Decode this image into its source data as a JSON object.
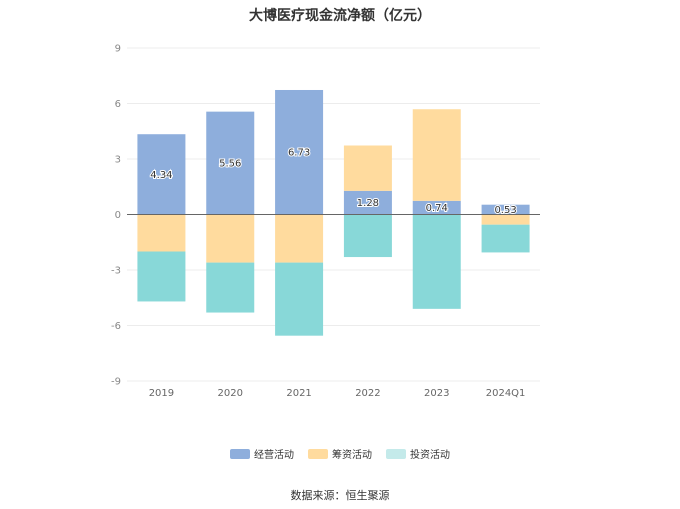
{
  "chart_data": {
    "type": "bar",
    "stacked": true,
    "title": "大博医疗现金流净额（亿元）",
    "categories": [
      "2019",
      "2020",
      "2021",
      "2022",
      "2023",
      "2024Q1"
    ],
    "yticks": [
      "9",
      "6",
      "3",
      "0",
      "-3",
      "-6",
      "-9"
    ],
    "ylim": [
      -9,
      9
    ],
    "grid": true,
    "legend_position": "bottom",
    "series": [
      {
        "name": "经营活动",
        "color": "#8eaedc",
        "values": [
          4.34,
          5.56,
          6.73,
          1.28,
          0.74,
          0.53
        ],
        "labels": [
          "4.34",
          "5.56",
          "6.73",
          "1.28",
          "0.74",
          "0.53"
        ]
      },
      {
        "name": "筹资活动",
        "color": "#ffdb9e",
        "values": [
          -2.0,
          -2.6,
          -2.6,
          2.45,
          4.95,
          -0.55
        ],
        "labels": []
      },
      {
        "name": "投资活动",
        "color": "#88d8d8",
        "values": [
          -2.7,
          -2.7,
          -3.95,
          -2.3,
          -5.1,
          -1.5
        ],
        "labels": []
      }
    ],
    "source": "数据来源：恒生聚源"
  }
}
